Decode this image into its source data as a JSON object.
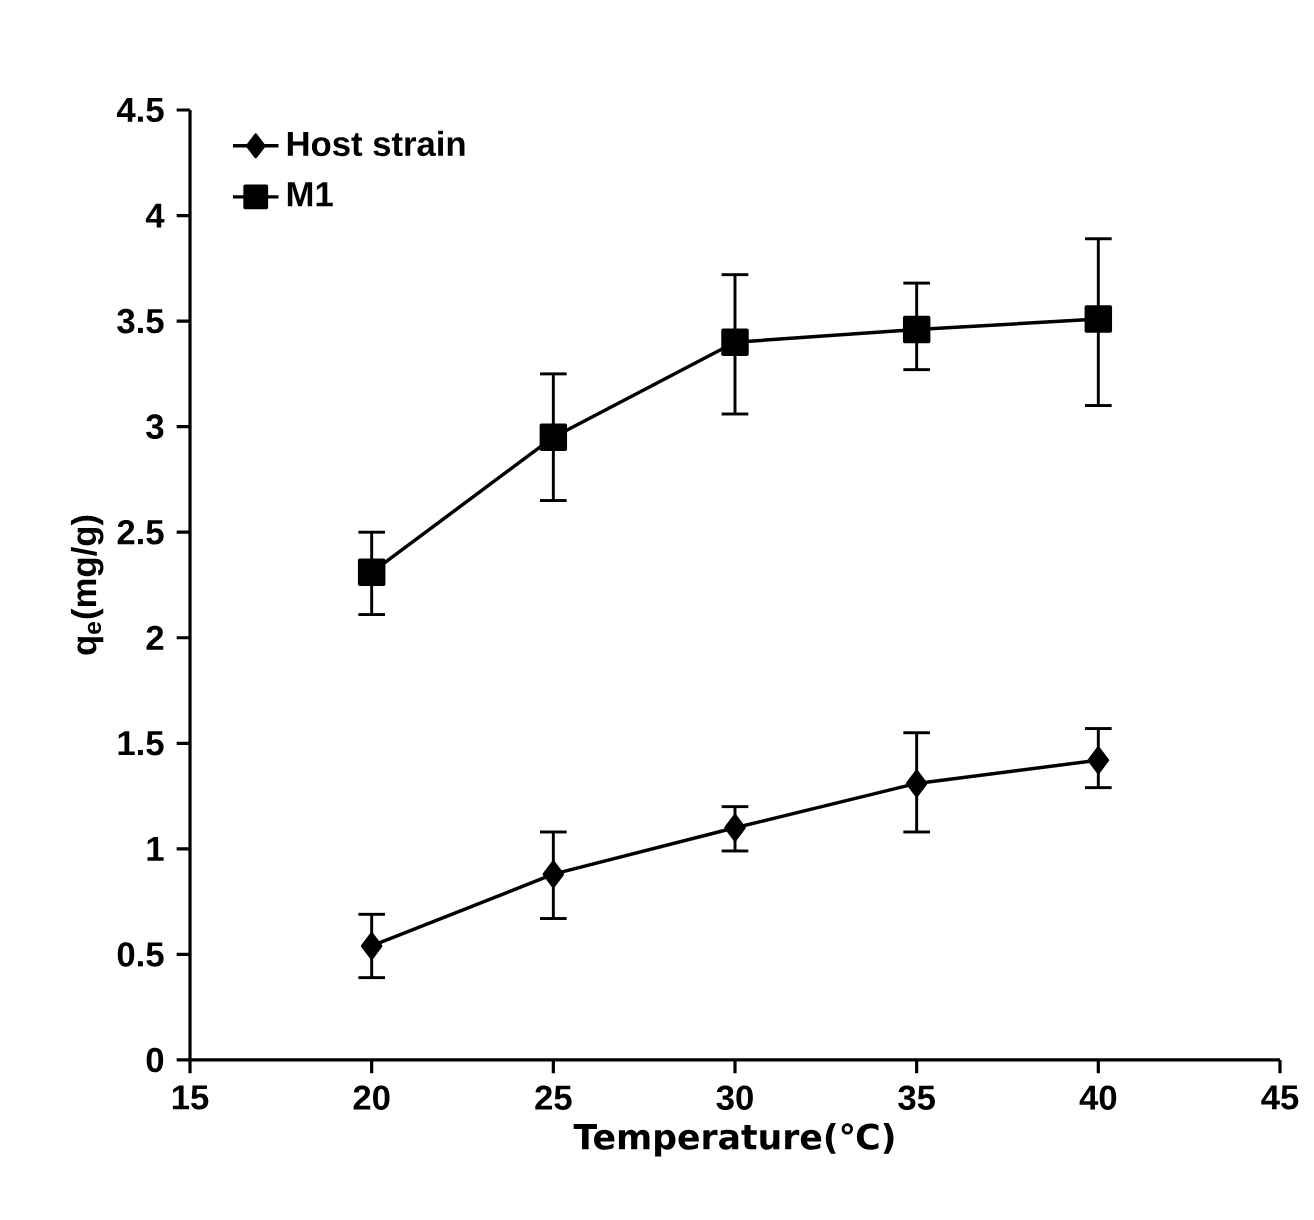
{
  "chart_data": {
    "type": "line",
    "xlabel": "Temperature(℃)",
    "ylabel": "q$_{e}$(mg/g)",
    "xlim": [
      15,
      45
    ],
    "xticks": [
      15,
      20,
      25,
      30,
      35,
      40,
      45
    ],
    "ylim": [
      0,
      4.5
    ],
    "yticks": [
      0,
      0.5,
      1,
      1.5,
      2,
      2.5,
      3,
      3.5,
      4,
      4.5
    ],
    "x": [
      20,
      25,
      30,
      35,
      40
    ],
    "legend": "top left",
    "grid": false,
    "line_style": "solid",
    "series": [
      {
        "name": "Host strain",
        "color": "#000000",
        "marker": "diamond",
        "values": [
          0.54,
          0.88,
          1.1,
          1.31,
          1.42
        ],
        "errors": [
          [
            0.39,
            0.69
          ],
          [
            0.67,
            1.08
          ],
          [
            0.99,
            1.2
          ],
          [
            1.08,
            1.55
          ],
          [
            1.29,
            1.57
          ]
        ]
      },
      {
        "name": "M1",
        "color": "#000000",
        "marker": "square",
        "values": [
          2.31,
          2.95,
          3.4,
          3.46,
          3.51
        ],
        "errors": [
          [
            2.11,
            2.5
          ],
          [
            2.65,
            3.25
          ],
          [
            3.06,
            3.72
          ],
          [
            3.27,
            3.68
          ],
          [
            3.1,
            3.89
          ]
        ]
      }
    ]
  }
}
